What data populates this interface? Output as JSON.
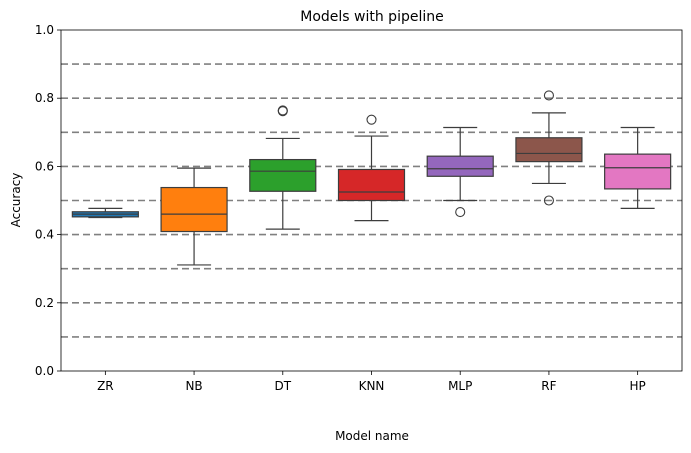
{
  "chart_data": {
    "type": "box",
    "title": "Models with pipeline",
    "xlabel": "Model name",
    "ylabel": "Accuracy",
    "ylim": [
      0,
      1.0
    ],
    "yticks": [
      "0.0",
      "0.2",
      "0.4",
      "0.6",
      "0.8",
      "1.0"
    ],
    "reference_lines": [
      0.1,
      0.2,
      0.3,
      0.4,
      0.5,
      0.6,
      0.7,
      0.8,
      0.9
    ],
    "categories": [
      "ZR",
      "NB",
      "DT",
      "KNN",
      "MLP",
      "RF",
      "HP"
    ],
    "boxes": [
      {
        "name": "ZR",
        "color": "#1f77b4",
        "whisker_low": 0.45,
        "q1": 0.452,
        "median": 0.46,
        "q3": 0.467,
        "whisker_high": 0.477,
        "fliers": []
      },
      {
        "name": "NB",
        "color": "#ff7f0e",
        "whisker_low": 0.311,
        "q1": 0.409,
        "median": 0.46,
        "q3": 0.538,
        "whisker_high": 0.595,
        "fliers": []
      },
      {
        "name": "DT",
        "color": "#2ca02c",
        "whisker_low": 0.416,
        "q1": 0.527,
        "median": 0.586,
        "q3": 0.62,
        "whisker_high": 0.682,
        "fliers": [
          0.762,
          0.764
        ]
      },
      {
        "name": "KNN",
        "color": "#d62728",
        "whisker_low": 0.441,
        "q1": 0.5,
        "median": 0.525,
        "q3": 0.591,
        "whisker_high": 0.689,
        "fliers": [
          0.737
        ]
      },
      {
        "name": "MLP",
        "color": "#9467bd",
        "whisker_low": 0.5,
        "q1": 0.571,
        "median": 0.593,
        "q3": 0.63,
        "whisker_high": 0.714,
        "fliers": [
          0.466
        ]
      },
      {
        "name": "RF",
        "color": "#8c564b",
        "whisker_low": 0.55,
        "q1": 0.614,
        "median": 0.638,
        "q3": 0.684,
        "whisker_high": 0.757,
        "fliers": [
          0.808,
          0.5
        ]
      },
      {
        "name": "HP",
        "color": "#e377c2",
        "whisker_low": 0.477,
        "q1": 0.534,
        "median": 0.596,
        "q3": 0.636,
        "whisker_high": 0.714,
        "fliers": []
      }
    ]
  }
}
